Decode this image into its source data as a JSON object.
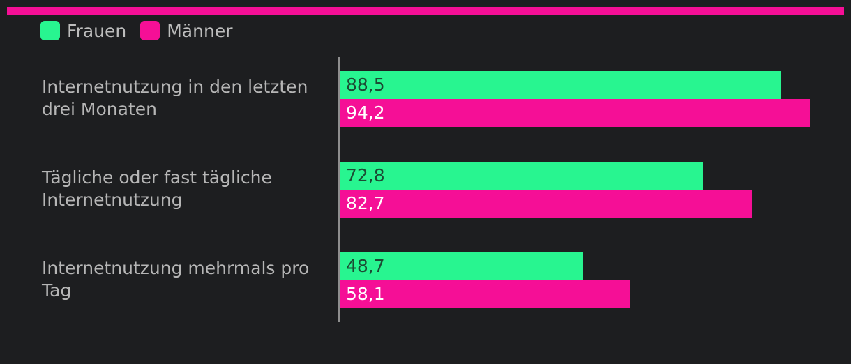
{
  "chart_data": {
    "type": "bar",
    "orientation": "horizontal",
    "title": "",
    "xlabel": "",
    "ylabel": "",
    "xlim": [
      0,
      100
    ],
    "legend_position": "top-left",
    "categories": [
      "Internetnutzung in den letzten drei Monaten",
      "Tägliche oder fast tägliche Internetnutzung",
      "Internetnutzung mehrmals pro Tag"
    ],
    "series": [
      {
        "name": "Frauen",
        "color": "#28f590",
        "label_color": "#1c4a33",
        "values": [
          88.5,
          72.8,
          48.7
        ],
        "labels": [
          "88,5",
          "72,8",
          "48,7"
        ]
      },
      {
        "name": "Männer",
        "color": "#f50f96",
        "label_color": "#ffffff",
        "values": [
          94.2,
          82.7,
          58.1
        ],
        "labels": [
          "94,2",
          "82,7",
          "58,1"
        ]
      }
    ]
  }
}
